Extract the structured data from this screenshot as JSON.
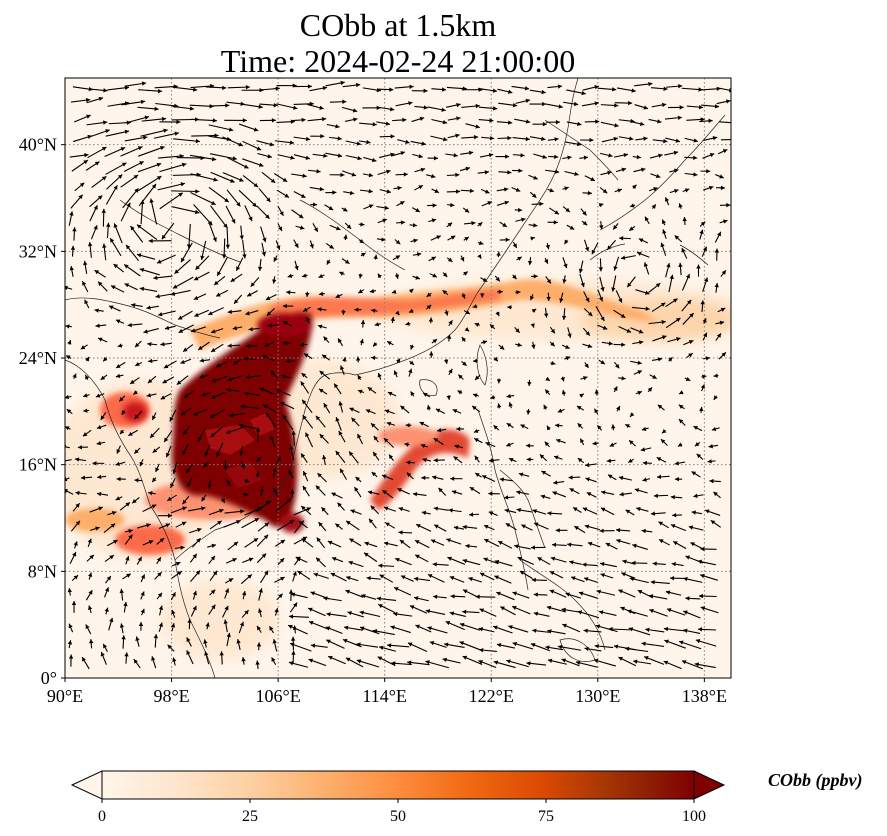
{
  "title": {
    "line1": "CObb at 1.5km",
    "line2": "Time: 2024-02-24 21:00:00"
  },
  "map": {
    "lon_range": [
      90,
      140
    ],
    "lat_range": [
      0,
      45
    ],
    "lon_ticks": [
      "90°E",
      "98°E",
      "106°E",
      "114°E",
      "122°E",
      "130°E",
      "138°E"
    ],
    "lat_ticks": [
      "0°",
      "8°N",
      "16°N",
      "24°N",
      "32°N",
      "40°N"
    ],
    "lon_tick_values": [
      90,
      98,
      106,
      114,
      122,
      130,
      138
    ],
    "lat_tick_values": [
      0,
      8,
      16,
      24,
      32,
      40
    ],
    "gridlines": true,
    "background_color": "#fff5eb",
    "plume_colors": [
      "#fdd0a2",
      "#fb6a4a",
      "#cb181d",
      "#7f0000"
    ]
  },
  "colorbar": {
    "label": "CObb (ppbv)",
    "ticks": [
      "0",
      "25",
      "50",
      "75",
      "100"
    ],
    "min": 0,
    "max": 100,
    "extend": "both",
    "colormap": [
      "#fff5eb",
      "#fee6ce",
      "#fdd0a2",
      "#fdae6b",
      "#fd8d3c",
      "#f16913",
      "#d94801",
      "#a63603",
      "#7f2704",
      "#7f0000"
    ]
  }
}
